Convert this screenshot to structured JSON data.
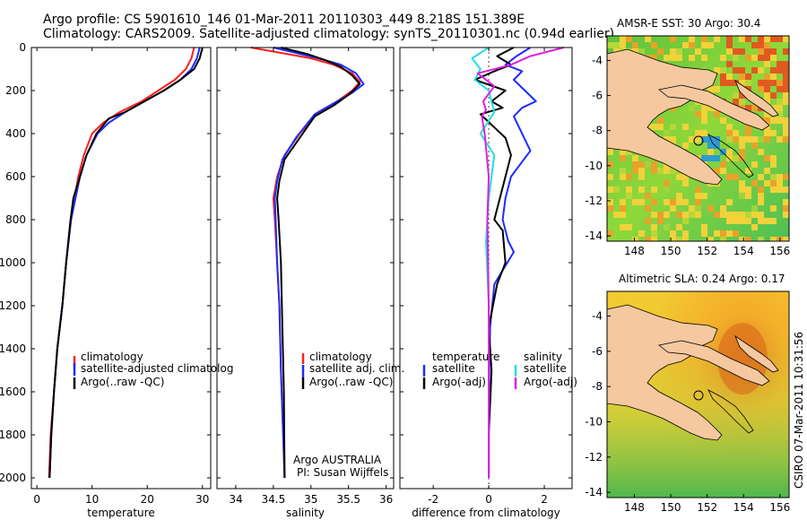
{
  "figure": {
    "title_line1": "Argo profile: CS 5901610_146 01-Mar-2011 20110303_449 8.218S 151.389E",
    "title_line2": "Climatology: CARS2009. Satellite-adjusted climatology: synTS_20110301.nc (0.94d earlier)",
    "footer": "CSIRO 07-Mar-2011 10:31:56",
    "annotation_line1": "Argo AUSTRALIA",
    "annotation_line2": "PI: Susan Wijffels"
  },
  "colors": {
    "climatology": "#ff1f1f",
    "satellite": "#1f2bff",
    "argo": "#000000",
    "salinity_satellite": "#1fe0e0",
    "salinity_argo": "#e01fe0",
    "land": "#f5c8a0"
  },
  "chart_data": [
    {
      "type": "line",
      "xlabel": "temperature",
      "ylabel": "",
      "xlim": [
        -1,
        31.5
      ],
      "ylim": [
        2050,
        0
      ],
      "xticks": [
        0,
        10,
        20,
        30
      ],
      "yticks": [
        0,
        200,
        400,
        600,
        800,
        1000,
        1200,
        1400,
        1600,
        1800,
        2000
      ],
      "legend": {
        "placement": "lower-left",
        "entries": [
          "climatology",
          "satellite-adjusted climatolog",
          "Argo(..raw -QC)"
        ]
      },
      "series": [
        {
          "name": "climatology",
          "color": "#ff1f1f",
          "x": [
            28.5,
            28,
            27,
            25,
            22,
            19,
            15,
            12,
            10,
            8.5,
            7.5,
            6.8,
            6.1,
            5.3,
            4.6,
            3.7,
            3.1,
            2.5,
            2.2
          ],
          "y": [
            0,
            50,
            100,
            150,
            200,
            250,
            300,
            350,
            400,
            500,
            600,
            700,
            800,
            1000,
            1200,
            1400,
            1600,
            1800,
            2000
          ]
        },
        {
          "name": "satellite-adjusted climatolog",
          "color": "#1f2bff",
          "x": [
            29.5,
            29,
            28,
            26,
            23,
            19.5,
            16,
            13,
            11,
            9,
            7.8,
            7,
            6.2,
            5.3,
            4.6,
            3.7,
            3.1,
            2.6,
            2.3
          ],
          "y": [
            0,
            50,
            100,
            150,
            200,
            250,
            300,
            350,
            400,
            500,
            600,
            700,
            800,
            1000,
            1200,
            1400,
            1600,
            1800,
            2000
          ]
        },
        {
          "name": "Argo(..raw -QC)",
          "color": "#000000",
          "x": [
            30,
            29.5,
            28.5,
            26,
            23,
            19.5,
            16,
            13,
            10.8,
            9,
            7.8,
            6.6,
            6.1,
            5.3,
            4.6,
            3.7,
            3.1,
            2.6,
            2.3
          ],
          "y": [
            0,
            50,
            100,
            150,
            200,
            250,
            300,
            330,
            400,
            500,
            600,
            700,
            800,
            1000,
            1200,
            1400,
            1600,
            1800,
            2000
          ]
        }
      ]
    },
    {
      "type": "line",
      "xlabel": "salinity",
      "xlim": [
        33.75,
        36.1
      ],
      "ylim": [
        2050,
        0
      ],
      "xticks": [
        34,
        34.5,
        35,
        35.5,
        36
      ],
      "xticklabels": [
        "34",
        "34.5",
        "35",
        "35.5",
        "36"
      ],
      "legend": {
        "placement": "lower-left",
        "entries": [
          "climatology",
          "satellite adj. clim.",
          "Argo(..raw -QC)"
        ]
      },
      "series": [
        {
          "name": "climatology",
          "color": "#ff1f1f",
          "x": [
            34.2,
            34.6,
            35.0,
            35.3,
            35.55,
            35.65,
            35.55,
            35.35,
            35.1,
            34.85,
            34.65,
            34.55,
            34.5,
            34.52,
            34.55,
            34.58,
            34.6,
            34.63,
            34.65
          ],
          "y": [
            0,
            25,
            50,
            80,
            120,
            160,
            200,
            250,
            300,
            400,
            500,
            600,
            700,
            800,
            1000,
            1200,
            1500,
            1800,
            2000
          ]
        },
        {
          "name": "satellite adj. clim.",
          "color": "#1f2bff",
          "x": [
            34.5,
            34.8,
            35.1,
            35.4,
            35.6,
            35.7,
            35.55,
            35.3,
            35.05,
            34.8,
            34.62,
            34.55,
            34.52,
            34.53,
            34.55,
            34.58,
            34.6,
            34.63,
            34.65
          ],
          "y": [
            0,
            25,
            50,
            80,
            120,
            170,
            210,
            260,
            310,
            420,
            520,
            620,
            700,
            800,
            1000,
            1200,
            1500,
            1800,
            2000
          ]
        },
        {
          "name": "Argo(..raw -QC)",
          "color": "#000000",
          "x": [
            34.6,
            34.95,
            35.2,
            35.4,
            35.55,
            35.65,
            35.5,
            35.3,
            35.05,
            34.85,
            34.65,
            34.58,
            34.55,
            34.57,
            34.6,
            34.62,
            34.64,
            34.65
          ],
          "y": [
            0,
            30,
            60,
            90,
            130,
            170,
            220,
            270,
            320,
            420,
            520,
            620,
            700,
            800,
            1000,
            1300,
            1600,
            2000
          ]
        }
      ],
      "annotations": [
        "Argo AUSTRALIA",
        "PI: Susan Wijffels"
      ]
    },
    {
      "type": "line",
      "xlabel": "difference from climatology",
      "xlim": [
        -3.2,
        3.0
      ],
      "ylim": [
        2050,
        0
      ],
      "xticks": [
        -2,
        0,
        2
      ],
      "legend": {
        "placement": "lower-left",
        "entries": [
          "temperature",
          "satellite",
          "Argo(-adj)",
          "salinity",
          "satellite",
          "Argo(-adj)"
        ]
      },
      "series": [
        {
          "name": "temperature satellite",
          "color": "#1f2bff",
          "x": [
            1.5,
            1.0,
            0.6,
            1.2,
            0.9,
            1.3,
            1.7,
            1.2,
            0.9,
            1.5,
            0.8,
            0.6,
            0.5,
            0.7,
            0.9,
            0.2,
            0.05,
            0.02,
            0.0,
            0.0,
            0.0
          ],
          "y": [
            0,
            40,
            80,
            110,
            150,
            200,
            250,
            280,
            320,
            480,
            600,
            700,
            800,
            900,
            950,
            1100,
            1300,
            1500,
            1700,
            1900,
            2000
          ]
        },
        {
          "name": "temperature Argo(-adj)",
          "color": "#000000",
          "x": [
            0.9,
            0.3,
            0.8,
            0.2,
            -0.5,
            0.6,
            0.1,
            0.5,
            -0.3,
            0.6,
            0.8,
            0.6,
            0.4,
            0.2,
            0.5,
            0.6,
            0.3,
            0.0,
            0.1,
            0.0,
            0.0
          ],
          "y": [
            0,
            40,
            80,
            110,
            150,
            200,
            250,
            280,
            310,
            420,
            500,
            600,
            700,
            800,
            850,
            1000,
            1100,
            1300,
            1500,
            1800,
            2000
          ]
        },
        {
          "name": "salinity satellite",
          "color": "#1fe0e0",
          "x": [
            0.0,
            -0.6,
            -0.3,
            -0.5,
            0.0,
            0.2,
            -0.3,
            0.2,
            0.0,
            -0.1,
            0.0,
            0.0
          ],
          "y": [
            0,
            50,
            100,
            150,
            200,
            300,
            400,
            500,
            700,
            900,
            1200,
            2000
          ]
        },
        {
          "name": "salinity Argo(-adj)",
          "color": "#e01fe0",
          "x": [
            2.7,
            1.5,
            0.8,
            -0.4,
            0.2,
            -0.2,
            -0.1,
            -0.25,
            -0.15,
            0.0,
            -0.05,
            0.0,
            0.0
          ],
          "y": [
            0,
            40,
            80,
            120,
            180,
            250,
            290,
            320,
            400,
            600,
            800,
            1200,
            2000
          ]
        }
      ]
    },
    {
      "type": "heatmap",
      "title": "AMSR-E SST: 30 Argo: 30.4",
      "xlim": [
        146.5,
        156.5
      ],
      "ylim": [
        -14.3,
        -2.6
      ],
      "xticks": [
        148,
        150,
        152,
        154,
        156
      ],
      "yticks": [
        -4,
        -6,
        -8,
        -10,
        -12,
        -14
      ],
      "float_position": {
        "lon": 151.389,
        "lat": -8.218
      }
    },
    {
      "type": "heatmap",
      "title": "Altimetric SLA: 0.24 Argo: 0.17",
      "xlim": [
        146.5,
        156.5
      ],
      "ylim": [
        -14.3,
        -2.6
      ],
      "xticks": [
        148,
        150,
        152,
        154,
        156
      ],
      "yticks": [
        -4,
        -6,
        -8,
        -10,
        -12,
        -14
      ],
      "float_position": {
        "lon": 151.389,
        "lat": -8.218
      }
    }
  ]
}
